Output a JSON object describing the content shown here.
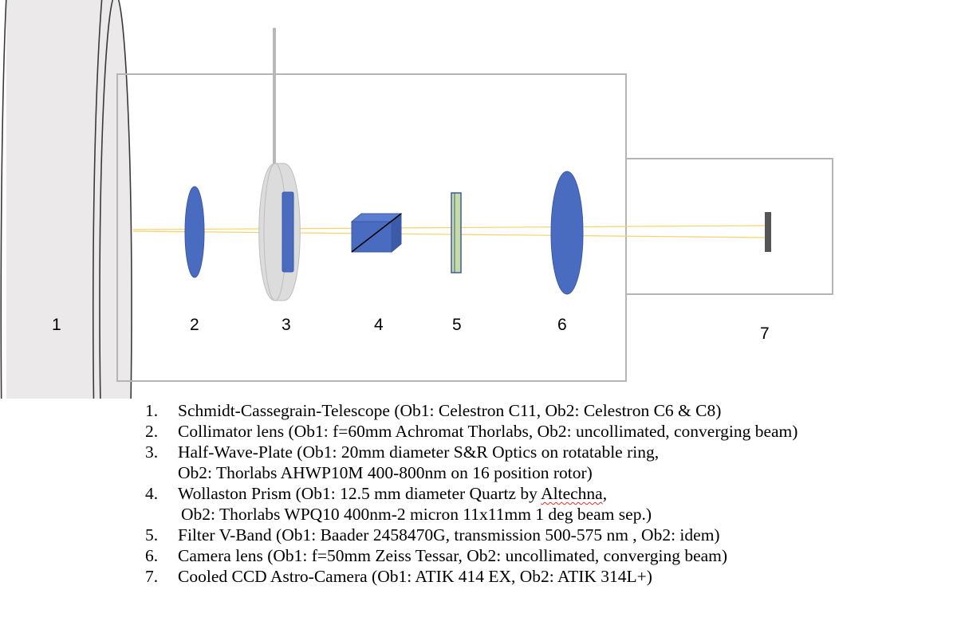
{
  "labels": [
    "1",
    "2",
    "3",
    "4",
    "5",
    "6",
    "7"
  ],
  "legend": [
    {
      "num": "1.",
      "line1": "Schmidt-Cassegrain-Telescope (Ob1: Celestron C11, Ob2: Celestron C6 & C8)",
      "line2": ""
    },
    {
      "num": "2.",
      "line1": "Collimator lens (Ob1: f=60mm Achromat Thorlabs, Ob2: uncollimated, converging beam)",
      "line2": ""
    },
    {
      "num": "3.",
      "line1": "Half-Wave-Plate (Ob1: 20mm diameter S&R Optics on rotatable ring,",
      "line2": "Ob2: Thorlabs AHWP10M 400-800nm on 16 position rotor)"
    },
    {
      "num": "4.",
      "line1_pre": "Wollaston Prism (Ob1: 12.5 mm diameter Quartz by ",
      "line1_mark": "Altechna",
      "line1_post": ",",
      "line2": "Ob2: Thorlabs WPQ10 400nm-2 micron 11x11mm 1 deg beam sep.)"
    },
    {
      "num": "5.",
      "line1": "Filter V-Band (Ob1: Baader 2458470G, transmission 500-575 nm , Ob2: idem)",
      "line2": ""
    },
    {
      "num": "6.",
      "line1": "Camera lens (Ob1: f=50mm Zeiss Tessar, Ob2: uncollimated, converging beam)",
      "line2": ""
    },
    {
      "num": "7.",
      "line1": "Cooled CCD Astro-Camera (Ob1: ATIK 414 EX, Ob2: ATIK 314L+)",
      "line2": ""
    }
  ],
  "colors": {
    "telescope_fill": "#ebe9ea",
    "lens_blue": "#4a6cc0",
    "filter_green": "#c8dba0",
    "beam_yellow": "#f5d36a",
    "box_stroke": "#b5b5b5",
    "sensor_gray": "#555555"
  }
}
